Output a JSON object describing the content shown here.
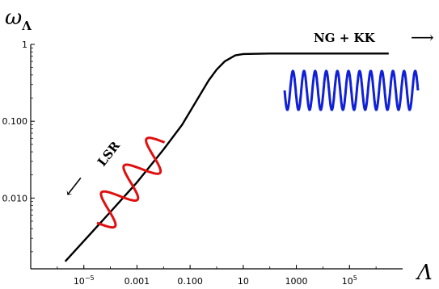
{
  "chart_data": {
    "type": "line",
    "xscale": "log",
    "yscale": "log",
    "xlabel": "Λ",
    "ylabel": "ω",
    "ylabel_sub": "Λ",
    "xlim": [
      1e-07,
      10000000.0
    ],
    "ylim": [
      0.0012,
      1.0
    ],
    "x_ticks": [
      {
        "value": 1e-05,
        "label": "10",
        "sup": "−5"
      },
      {
        "value": 0.001,
        "label": "0.001",
        "sup": ""
      },
      {
        "value": 0.1,
        "label": "0.100",
        "sup": ""
      },
      {
        "value": 10,
        "label": "10",
        "sup": ""
      },
      {
        "value": 1000,
        "label": "1000",
        "sup": ""
      },
      {
        "value": 100000,
        "label": "10",
        "sup": "5"
      }
    ],
    "y_ticks": [
      {
        "value": 0.01,
        "label": "0.010"
      },
      {
        "value": 0.1,
        "label": "0.100"
      },
      {
        "value": 1,
        "label": "1"
      }
    ],
    "series": [
      {
        "color": "#000000",
        "x": [
          2e-06,
          0.0001,
          0.001,
          0.01,
          0.05,
          0.2,
          0.5,
          1,
          2,
          5,
          10,
          100,
          1000,
          10000,
          100000,
          3000000.0
        ],
        "y": [
          0.0015,
          0.0066,
          0.016,
          0.043,
          0.09,
          0.2,
          0.34,
          0.47,
          0.6,
          0.72,
          0.75,
          0.76,
          0.76,
          0.76,
          0.76,
          0.76
        ]
      }
    ],
    "annotations": {
      "lsr": "LSR",
      "ngkk": "NG + KK",
      "left_arrow": "⟵",
      "right_arrow": "⟶"
    },
    "colors": {
      "curve": "#000000",
      "low_wave": "#e01010",
      "high_wave": "#1020d8"
    }
  }
}
